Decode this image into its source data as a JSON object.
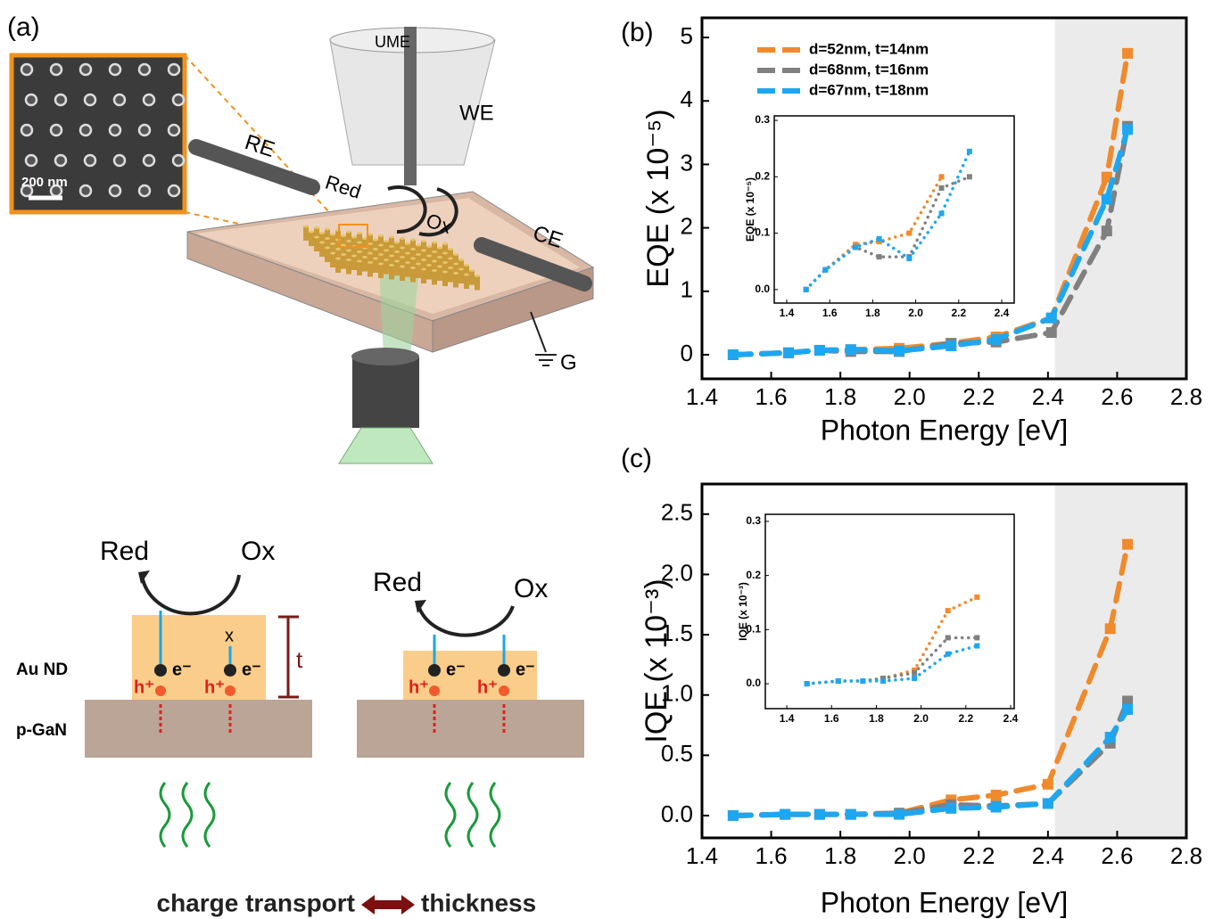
{
  "panel_labels": [
    "(a)",
    "(b)",
    "(c)"
  ],
  "panel_a": {
    "sem_scale": "200 nm",
    "ume": "UME",
    "we": "WE",
    "re": "RE",
    "red": "Red",
    "ox": "Ox",
    "ce": "CE",
    "g": "G",
    "scheme": {
      "red_left": "Red",
      "ox_left": "Ox",
      "red_right": "Red",
      "ox_right": "Ox",
      "blocked": "x",
      "t": "t",
      "au_nd": "Au ND",
      "p_gan": "p-GaN",
      "electrons": [
        "e⁻",
        "e⁻",
        "e⁻",
        "e⁻"
      ],
      "holes": [
        "h⁺",
        "h⁺",
        "h⁺",
        "h⁺"
      ],
      "caption_left": "charge transport",
      "caption_right": "thickness"
    }
  },
  "chart_data": [
    {
      "type": "line",
      "xlabel": "Photon Energy [eV]",
      "ylabel": "EQE (x 10⁻⁵)",
      "xlim": [
        1.4,
        2.8
      ],
      "ylim": [
        -0.38,
        5.31
      ],
      "xticks": [
        1.4,
        1.6,
        1.8,
        {
          "value": 2,
          "label": "2.0"
        },
        2.2,
        2.4,
        2.6,
        2.8
      ],
      "yticks": [
        0,
        1,
        2,
        3,
        4,
        5
      ],
      "highlight_x": [
        2.42,
        2.8
      ],
      "legend": "upper left",
      "linestyle": "dashed",
      "x": [
        1.49,
        1.65,
        1.74,
        1.83,
        1.97,
        2.12,
        2.25,
        2.41,
        2.57,
        2.63
      ],
      "series": [
        {
          "name": "d=52nm, t=14nm",
          "color": "#f08a2c",
          "values": [
            0,
            0.03,
            0.07,
            0.08,
            0.1,
            0.18,
            0.28,
            0.58,
            2.8,
            4.75
          ]
        },
        {
          "name": "d=68nm, t=16nm",
          "color": "#808080",
          "values": [
            0,
            0.03,
            0.07,
            0.05,
            0.05,
            0.18,
            0.2,
            0.35,
            1.95,
            3.6
          ]
        },
        {
          "name": "d=67nm, t=18nm",
          "color": "#1ea7f0",
          "values": [
            0,
            0.03,
            0.07,
            0.08,
            0.06,
            0.14,
            0.24,
            0.58,
            2.45,
            3.55
          ]
        }
      ]
    },
    {
      "type": "line",
      "xlabel": "Photon Energy [eV]",
      "ylabel": "IQE (x 10⁻³)",
      "xlim": [
        1.4,
        2.8
      ],
      "ylim": [
        -0.185,
        2.75
      ],
      "xticks": [
        1.4,
        1.6,
        1.8,
        {
          "value": 2,
          "label": "2.0"
        },
        2.2,
        2.4,
        2.6,
        2.8
      ],
      "yticks": [
        {
          "value": 0,
          "label": "0.0"
        },
        0.5,
        {
          "value": 1,
          "label": "1.0"
        },
        1.5,
        {
          "value": 2,
          "label": "2.0"
        },
        2.5
      ],
      "highlight_x": [
        2.42,
        2.8
      ],
      "linestyle": "dashed",
      "x": [
        1.49,
        1.64,
        1.74,
        1.83,
        1.97,
        2.12,
        2.25,
        2.4,
        2.58,
        2.63
      ],
      "series": [
        {
          "color": "#f08a2c",
          "values": [
            0,
            0.01,
            0.01,
            0.01,
            0.02,
            0.13,
            0.17,
            0.26,
            1.55,
            2.25
          ]
        },
        {
          "color": "#808080",
          "values": [
            0,
            0.01,
            0.01,
            0.01,
            0.02,
            0.09,
            0.08,
            0.1,
            0.6,
            0.95
          ]
        },
        {
          "color": "#1ea7f0",
          "values": [
            0,
            0.01,
            0.01,
            0.01,
            0.01,
            0.06,
            0.07,
            0.1,
            0.65,
            0.88
          ]
        }
      ]
    },
    {
      "type": "line",
      "ylabel": "EQE (x 10⁻⁵)",
      "xlim": [
        1.342,
        2.458
      ],
      "ylim": [
        -0.024,
        0.308
      ],
      "xticks": [
        1.4,
        1.6,
        1.8,
        {
          "value": 2,
          "label": "2.0"
        },
        2.2,
        2.4
      ],
      "yticks": [
        {
          "value": 0,
          "label": "0.0"
        },
        0.1,
        0.2,
        0.3
      ],
      "linestyle": "dotted",
      "x": [
        1.49,
        1.58,
        1.72,
        1.83,
        1.97,
        2.12,
        2.25
      ],
      "series": [
        {
          "color": "#f08a2c",
          "values": [
            0,
            0.035,
            0.08,
            0.085,
            0.1,
            0.2,
            null
          ]
        },
        {
          "color": "#808080",
          "values": [
            0,
            0.035,
            0.075,
            0.058,
            0.058,
            0.18,
            0.2
          ]
        },
        {
          "color": "#1ea7f0",
          "values": [
            0,
            0.035,
            0.075,
            0.09,
            0.055,
            0.135,
            0.245
          ]
        }
      ]
    },
    {
      "type": "line",
      "ylabel": "IQE (x 10⁻³)",
      "xlim": [
        1.304,
        2.416
      ],
      "ylim": [
        -0.046,
        0.313
      ],
      "xticks": [
        1.4,
        1.6,
        1.8,
        {
          "value": 2,
          "label": "2.0"
        },
        2.2,
        2.4
      ],
      "yticks": [
        {
          "value": 0,
          "label": "0.0"
        },
        0.1,
        0.2,
        0.3
      ],
      "linestyle": "dotted",
      "x": [
        1.49,
        1.63,
        1.74,
        1.83,
        1.97,
        2.12,
        2.25
      ],
      "series": [
        {
          "color": "#f08a2c",
          "values": [
            0,
            0.005,
            0.005,
            0.01,
            0.025,
            0.135,
            0.16
          ]
        },
        {
          "color": "#808080",
          "values": [
            0,
            0.005,
            0.005,
            0.01,
            0.02,
            0.085,
            0.085
          ]
        },
        {
          "color": "#1ea7f0",
          "values": [
            0,
            0.005,
            0.005,
            0.005,
            0.01,
            0.055,
            0.07
          ]
        }
      ]
    }
  ]
}
